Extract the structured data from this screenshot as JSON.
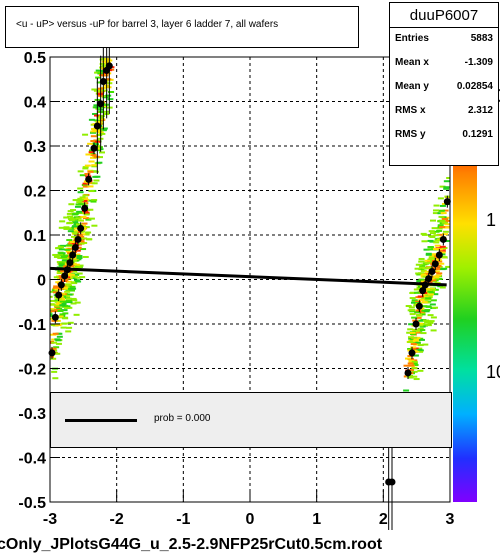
{
  "chart_data": {
    "type": "scatter",
    "title": "<u - uP>       versus  -uP for barrel 3, layer 6 ladder 7, all wafers",
    "xlabel": "",
    "ylabel": "",
    "xlim": [
      -3,
      3
    ],
    "ylim": [
      -0.5,
      0.5
    ],
    "x_ticks": [
      "-3",
      "-2",
      "-1",
      "0",
      "1",
      "2",
      "3"
    ],
    "y_ticks": [
      "-0.5",
      "-0.4",
      "-0.3",
      "-0.2",
      "-0.1",
      "0",
      "0.1",
      "0.2",
      "0.3",
      "0.4",
      "0.5"
    ],
    "grid": true,
    "z_scale": "log",
    "z_ticks": [
      "10",
      "1",
      "10"
    ],
    "profile_points": [
      {
        "x": -2.97,
        "y": -0.165
      },
      {
        "x": -2.92,
        "y": -0.085
      },
      {
        "x": -2.87,
        "y": -0.035
      },
      {
        "x": -2.83,
        "y": -0.012
      },
      {
        "x": -2.78,
        "y": 0.008
      },
      {
        "x": -2.74,
        "y": 0.022
      },
      {
        "x": -2.7,
        "y": 0.038
      },
      {
        "x": -2.66,
        "y": 0.055
      },
      {
        "x": -2.62,
        "y": 0.072
      },
      {
        "x": -2.58,
        "y": 0.09
      },
      {
        "x": -2.54,
        "y": 0.115
      },
      {
        "x": -2.48,
        "y": 0.16
      },
      {
        "x": -2.42,
        "y": 0.225
      },
      {
        "x": -2.34,
        "y": 0.295
      },
      {
        "x": -2.29,
        "y": 0.345
      },
      {
        "x": -2.24,
        "y": 0.395
      },
      {
        "x": -2.2,
        "y": 0.445
      },
      {
        "x": -2.15,
        "y": 0.47
      },
      {
        "x": -2.11,
        "y": 0.48
      },
      {
        "x": 2.08,
        "y": -0.455
      },
      {
        "x": 2.13,
        "y": -0.455
      },
      {
        "x": 2.37,
        "y": -0.21
      },
      {
        "x": 2.43,
        "y": -0.165
      },
      {
        "x": 2.49,
        "y": -0.1
      },
      {
        "x": 2.54,
        "y": -0.06
      },
      {
        "x": 2.59,
        "y": -0.025
      },
      {
        "x": 2.63,
        "y": -0.012
      },
      {
        "x": 2.68,
        "y": 0.002
      },
      {
        "x": 2.73,
        "y": 0.018
      },
      {
        "x": 2.78,
        "y": 0.035
      },
      {
        "x": 2.84,
        "y": 0.055
      },
      {
        "x": 2.9,
        "y": 0.09
      },
      {
        "x": 2.96,
        "y": 0.175
      }
    ],
    "fit_line": {
      "x": [
        -3,
        2.95
      ],
      "y": [
        0.025,
        -0.012
      ]
    },
    "legend": {
      "label": "prob = 0.000",
      "placement": "bottom"
    },
    "stats": {
      "name": "duuP6007",
      "entries": {
        "label": "Entries",
        "value": "5883"
      },
      "mean_x": {
        "label": "Mean x",
        "value": "-1.309"
      },
      "mean_y": {
        "label": "Mean y",
        "value": "0.02854"
      },
      "rms_x": {
        "label": "RMS x",
        "value": "2.312"
      },
      "rms_y": {
        "label": "RMS y",
        "value": "0.1291"
      }
    }
  },
  "footer": "cOnly_JPlotsG44G_u_2.5-2.9NFP25rCut0.5cm.root"
}
